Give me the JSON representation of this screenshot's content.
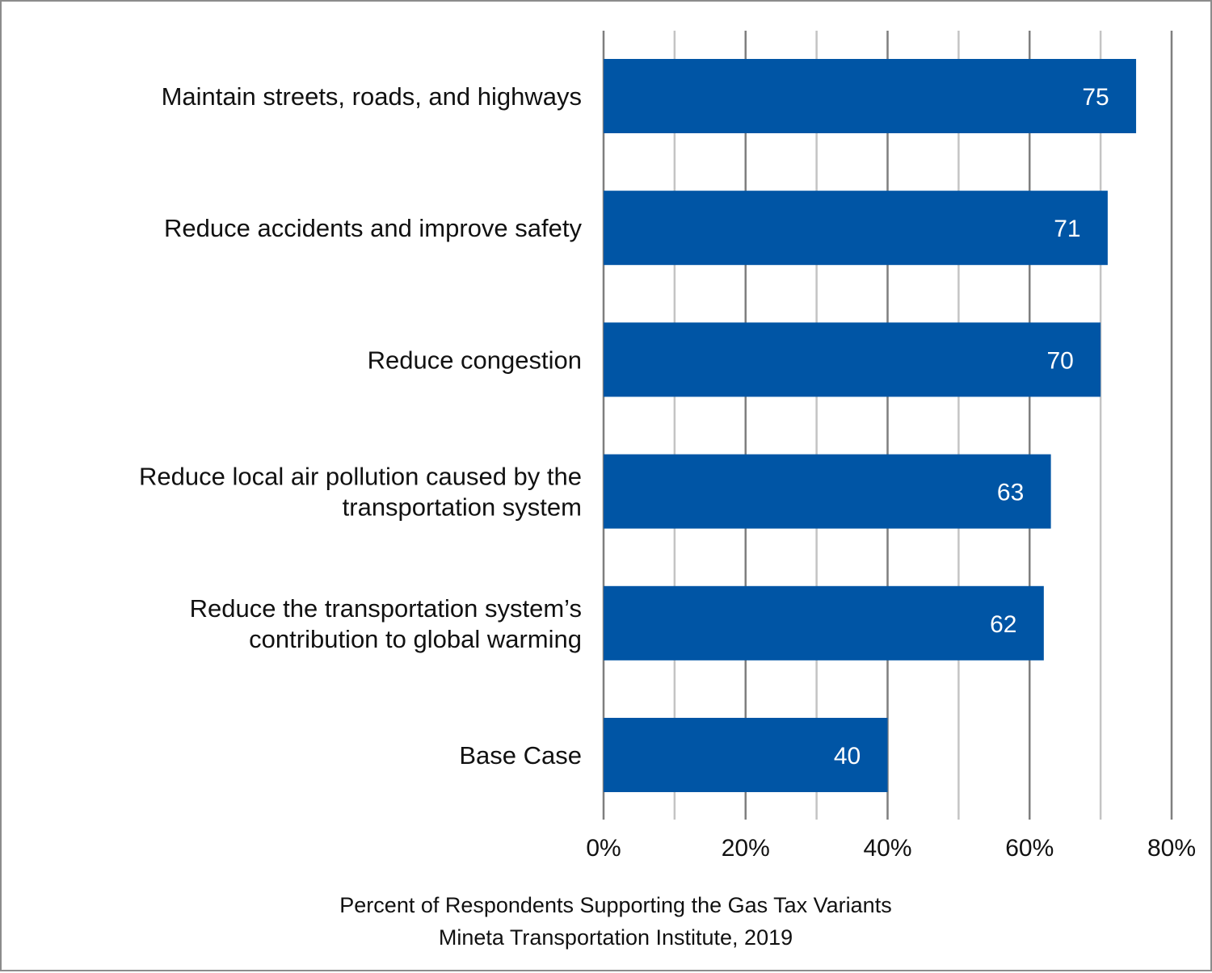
{
  "chart_data": {
    "type": "bar",
    "orientation": "horizontal",
    "categories": [
      [
        "Maintain streets, roads, and highways"
      ],
      [
        "Reduce accidents and improve safety"
      ],
      [
        "Reduce congestion"
      ],
      [
        "Reduce local air pollution caused by the",
        "transportation system"
      ],
      [
        "Reduce the transportation system’s",
        "contribution to global warming"
      ],
      [
        "Base Case"
      ]
    ],
    "values": [
      75,
      71,
      70,
      63,
      62,
      40
    ],
    "data_labels": [
      "75",
      "71",
      "70",
      "63",
      "62",
      "40"
    ],
    "xlim": [
      0,
      80
    ],
    "major_ticks": [
      0,
      20,
      40,
      60,
      80
    ],
    "minor_ticks": [
      10,
      30,
      50,
      70
    ],
    "tick_labels": [
      "0%",
      "20%",
      "40%",
      "60%",
      "80%"
    ],
    "gridlines": true,
    "bar_color": "#0055a5",
    "caption": [
      "Percent of Respondents Supporting the Gas Tax Variants",
      "Mineta Transportation Institute, 2019"
    ]
  }
}
